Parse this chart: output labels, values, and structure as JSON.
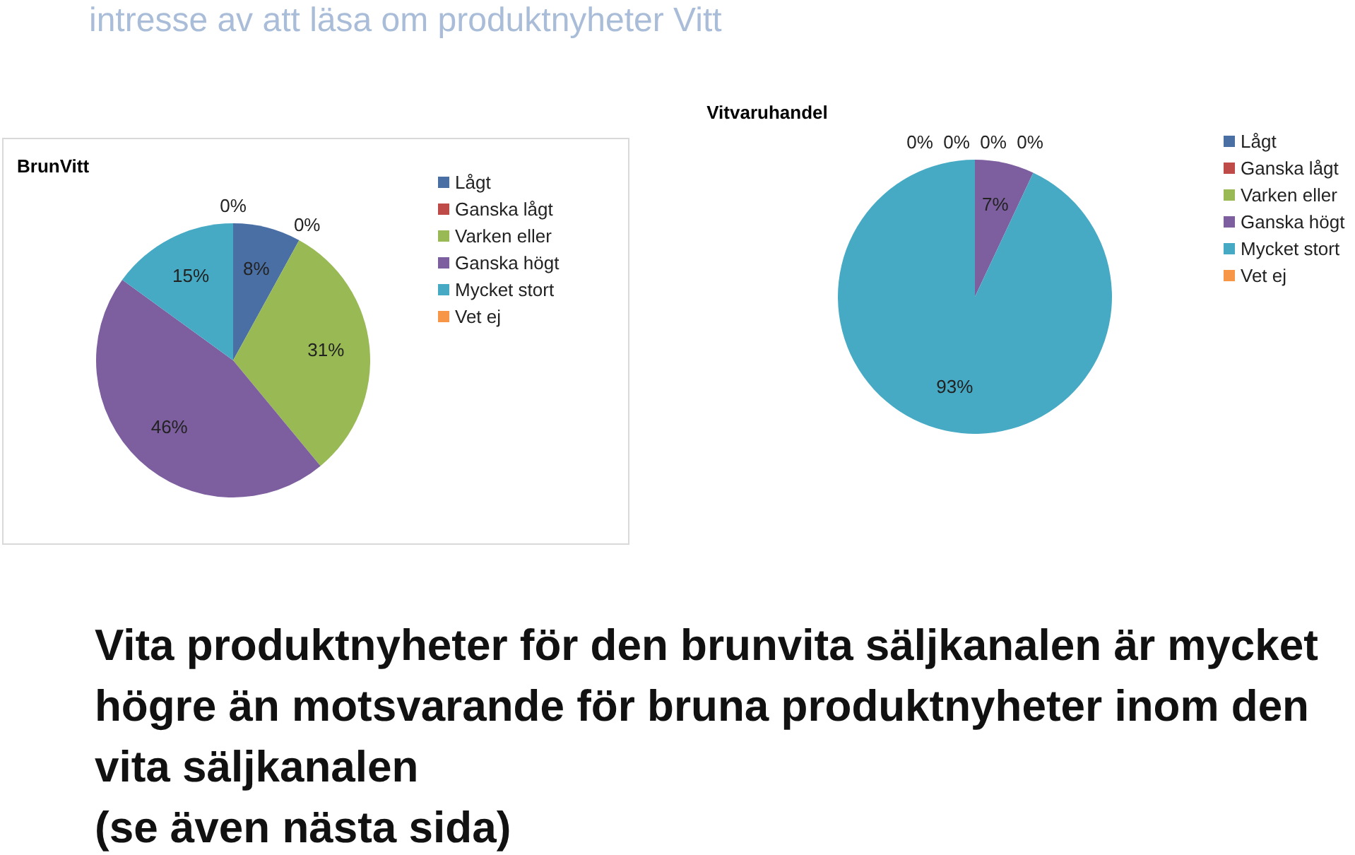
{
  "chart_data": [
    {
      "type": "pie",
      "title": "BrunVitt",
      "legend": "right",
      "value_labels": [
        "8%",
        "0%",
        "31%",
        "46%",
        "15%",
        "0%"
      ],
      "categories": [
        "Lågt",
        "Ganska lågt",
        "Varken eller",
        "Ganska högt",
        "Mycket stort",
        "Vet ej"
      ],
      "values": [
        8,
        0,
        31,
        46,
        15,
        0
      ],
      "colors": [
        "#4a6fa5",
        "#be4b48",
        "#98b954",
        "#7d5fa0",
        "#46aac5",
        "#f79646"
      ],
      "annotations": [
        "intresse av att läsa om produktnyheter Vitt"
      ]
    },
    {
      "type": "pie",
      "title": "Vitvaruhandel",
      "legend": "right",
      "value_labels": [
        "0%",
        "0%",
        "0%",
        "7%",
        "93%",
        "0%"
      ],
      "categories": [
        "Lågt",
        "Ganska lågt",
        "Varken eller",
        "Ganska högt",
        "Mycket stort",
        "Vet ej"
      ],
      "values": [
        0,
        0,
        0,
        7,
        93,
        0
      ],
      "colors": [
        "#4a6fa5",
        "#be4b48",
        "#98b954",
        "#7d5fa0",
        "#46aac5",
        "#f79646"
      ],
      "annotations": [
        "Vita produktnyheter för den brunvita säljkanalen är mycket högre än motsvarande för bruna produktnyheter inom den vita säljkanalen",
        "(se även nästa sida)"
      ]
    }
  ]
}
